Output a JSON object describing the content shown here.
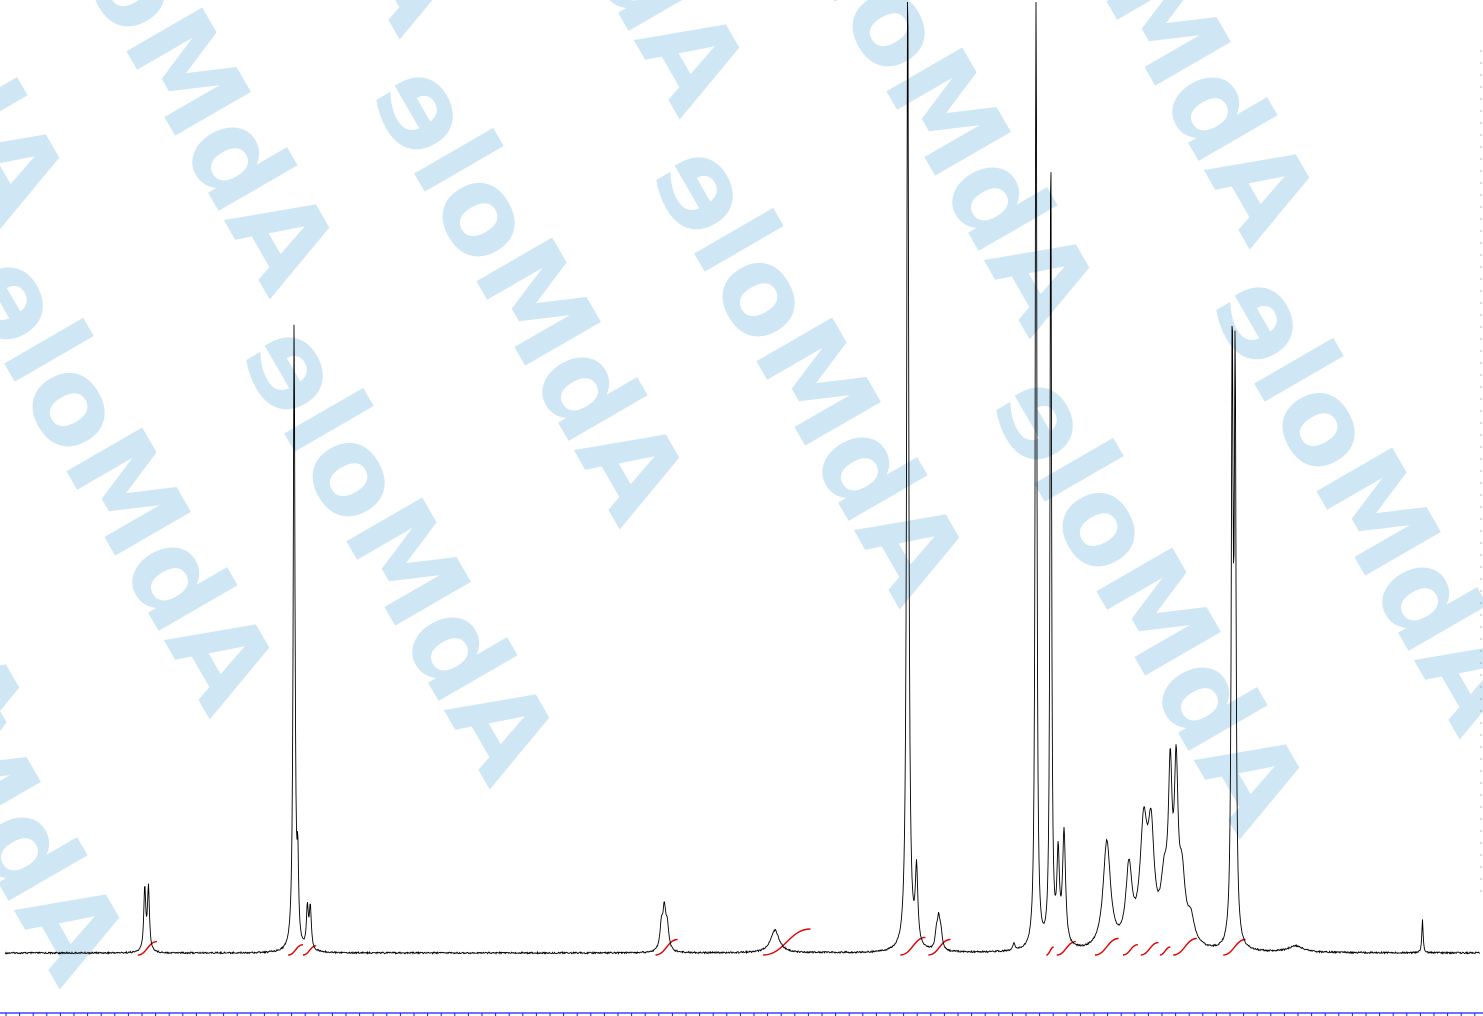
{
  "watermark": {
    "text": "AbMole",
    "blue": "#cfe7f5",
    "yellow": "#fbe9b4"
  },
  "colors": {
    "spectrum": "#000000",
    "integral": "#e00000",
    "axis": "#1a1aff",
    "background": "#ffffff"
  },
  "chart_data": {
    "type": "line",
    "title": "",
    "xlabel": "",
    "ylabel": "",
    "x_reversed": true,
    "xlim": [
      0,
      100
    ],
    "ylim": [
      0,
      100
    ],
    "grid": false,
    "legend": "none",
    "series": [
      {
        "peaks": [
          {
            "x": 90.4,
            "h": 10.0,
            "w": 0.08,
            "mult": 2,
            "split": 0.25
          },
          {
            "x": 80.4,
            "h": 100.0,
            "w": 0.07
          },
          {
            "x": 80.15,
            "h": 12.0,
            "w": 0.06
          },
          {
            "x": 79.4,
            "h": 6.5,
            "w": 0.08,
            "mult": 2,
            "split": 0.2
          },
          {
            "x": 55.3,
            "h": 6.2,
            "w": 0.12,
            "mult": 3,
            "split": 0.2
          },
          {
            "x": 47.8,
            "h": 3.6,
            "w": 0.35
          },
          {
            "x": 38.8,
            "h": 156.0,
            "w": 0.08
          },
          {
            "x": 38.2,
            "h": 12.0,
            "w": 0.1
          },
          {
            "x": 36.7,
            "h": 4.5,
            "w": 0.1,
            "mult": 3,
            "split": 0.15
          },
          {
            "x": 31.6,
            "h": 1.0,
            "w": 0.1
          },
          {
            "x": 30.1,
            "h": 168.0,
            "w": 0.06
          },
          {
            "x": 29.1,
            "h": 130.0,
            "w": 0.06
          },
          {
            "x": 28.6,
            "h": 14.0,
            "w": 0.1
          },
          {
            "x": 28.2,
            "h": 18.0,
            "w": 0.12
          },
          {
            "x": 25.3,
            "h": 17.0,
            "w": 0.3
          },
          {
            "x": 23.8,
            "h": 12.0,
            "w": 0.25
          },
          {
            "x": 22.8,
            "h": 18.0,
            "w": 0.3
          },
          {
            "x": 22.3,
            "h": 16.0,
            "w": 0.25
          },
          {
            "x": 21.4,
            "h": 9.0,
            "w": 0.3
          },
          {
            "x": 21.0,
            "h": 24.0,
            "w": 0.15
          },
          {
            "x": 20.6,
            "h": 25.0,
            "w": 0.15
          },
          {
            "x": 20.2,
            "h": 10.0,
            "w": 0.25
          },
          {
            "x": 19.6,
            "h": 4.0,
            "w": 0.3
          },
          {
            "x": 16.8,
            "h": 94.0,
            "w": 0.07
          },
          {
            "x": 16.6,
            "h": 89.0,
            "w": 0.07
          },
          {
            "x": 12.5,
            "h": 1.0,
            "w": 0.6
          },
          {
            "x": 3.9,
            "h": 5.3,
            "w": 0.05
          }
        ]
      }
    ],
    "integrals": [
      {
        "start": 91.0,
        "end": 89.7
      },
      {
        "start": 80.8,
        "end": 79.8
      },
      {
        "start": 79.8,
        "end": 78.9
      },
      {
        "start": 55.9,
        "end": 54.4
      },
      {
        "start": 48.6,
        "end": 45.4
      },
      {
        "start": 39.3,
        "end": 37.6
      },
      {
        "start": 37.4,
        "end": 35.9
      },
      {
        "start": 29.4,
        "end": 28.9
      },
      {
        "start": 28.7,
        "end": 27.4
      },
      {
        "start": 26.1,
        "end": 24.5
      },
      {
        "start": 24.2,
        "end": 23.2
      },
      {
        "start": 23.0,
        "end": 21.8
      },
      {
        "start": 21.7,
        "end": 21.0
      },
      {
        "start": 20.8,
        "end": 19.2
      },
      {
        "start": 17.4,
        "end": 15.9
      }
    ]
  }
}
